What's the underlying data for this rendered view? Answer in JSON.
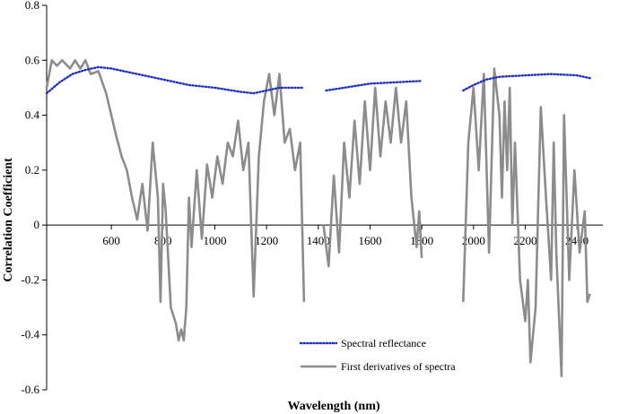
{
  "chart_data": {
    "type": "line",
    "title": "",
    "xlabel": "Wavelength (nm)",
    "ylabel": "Correlation Coefficient",
    "xlim": [
      350,
      2500
    ],
    "ylim": [
      -0.6,
      0.8
    ],
    "x_ticks": [
      600,
      800,
      1000,
      1200,
      1400,
      1600,
      1800,
      2000,
      2200,
      2400
    ],
    "y_ticks": [
      -0.6,
      -0.4,
      -0.2,
      0,
      0.2,
      0.4,
      0.6,
      0.8
    ],
    "y_tick_labels": [
      "-0.6",
      "-0.4",
      "-0.2",
      "0",
      "0.2",
      "0.4",
      "0.6",
      "0.8"
    ],
    "grid": false,
    "legend_position": "bottom-right",
    "series": [
      {
        "name": "Spectral reflectance",
        "color": "#1f2fbf",
        "style": "dotted",
        "segments": [
          [
            [
              350,
              0.48
            ],
            [
              400,
              0.52
            ],
            [
              450,
              0.55
            ],
            [
              500,
              0.565
            ],
            [
              550,
              0.575
            ],
            [
              600,
              0.57
            ],
            [
              700,
              0.55
            ],
            [
              800,
              0.53
            ],
            [
              900,
              0.51
            ],
            [
              1000,
              0.5
            ],
            [
              1100,
              0.485
            ],
            [
              1150,
              0.48
            ],
            [
              1200,
              0.49
            ],
            [
              1250,
              0.5
            ],
            [
              1300,
              0.5
            ],
            [
              1340,
              0.5
            ]
          ],
          [
            [
              1430,
              0.49
            ],
            [
              1500,
              0.5
            ],
            [
              1600,
              0.515
            ],
            [
              1700,
              0.52
            ],
            [
              1800,
              0.525
            ]
          ],
          [
            [
              1960,
              0.49
            ],
            [
              2000,
              0.51
            ],
            [
              2050,
              0.53
            ],
            [
              2100,
              0.54
            ],
            [
              2200,
              0.545
            ],
            [
              2300,
              0.55
            ],
            [
              2400,
              0.545
            ],
            [
              2450,
              0.535
            ]
          ]
        ]
      },
      {
        "name": "First derivatives of spectra",
        "color": "#8c8c8c",
        "style": "solid",
        "segments": [
          [
            [
              350,
              0.5
            ],
            [
              370,
              0.6
            ],
            [
              390,
              0.58
            ],
            [
              410,
              0.6
            ],
            [
              440,
              0.57
            ],
            [
              460,
              0.6
            ],
            [
              480,
              0.57
            ],
            [
              500,
              0.6
            ],
            [
              520,
              0.55
            ],
            [
              550,
              0.56
            ],
            [
              580,
              0.48
            ],
            [
              600,
              0.4
            ],
            [
              620,
              0.32
            ],
            [
              640,
              0.25
            ],
            [
              660,
              0.2
            ],
            [
              680,
              0.1
            ],
            [
              700,
              0.02
            ],
            [
              720,
              0.15
            ],
            [
              740,
              -0.02
            ],
            [
              760,
              0.3
            ],
            [
              770,
              0.2
            ],
            [
              780,
              0.1
            ],
            [
              790,
              -0.28
            ],
            [
              800,
              0.15
            ],
            [
              810,
              0.05
            ],
            [
              830,
              -0.3
            ],
            [
              850,
              -0.36
            ],
            [
              860,
              -0.42
            ],
            [
              870,
              -0.38
            ],
            [
              880,
              -0.42
            ],
            [
              890,
              -0.3
            ],
            [
              900,
              0.1
            ],
            [
              910,
              -0.08
            ],
            [
              930,
              0.2
            ],
            [
              950,
              -0.05
            ],
            [
              970,
              0.22
            ],
            [
              990,
              0.1
            ],
            [
              1010,
              0.25
            ],
            [
              1030,
              0.15
            ],
            [
              1050,
              0.3
            ],
            [
              1070,
              0.25
            ],
            [
              1090,
              0.38
            ],
            [
              1110,
              0.2
            ],
            [
              1130,
              0.3
            ],
            [
              1150,
              -0.26
            ],
            [
              1170,
              0.25
            ],
            [
              1190,
              0.45
            ],
            [
              1210,
              0.55
            ],
            [
              1230,
              0.4
            ],
            [
              1250,
              0.55
            ],
            [
              1270,
              0.3
            ],
            [
              1290,
              0.35
            ],
            [
              1310,
              0.2
            ],
            [
              1330,
              0.3
            ],
            [
              1345,
              -0.28
            ]
          ],
          [
            [
              1420,
              0.0
            ],
            [
              1440,
              -0.15
            ],
            [
              1460,
              0.18
            ],
            [
              1480,
              -0.1
            ],
            [
              1500,
              0.3
            ],
            [
              1520,
              0.1
            ],
            [
              1540,
              0.38
            ],
            [
              1560,
              0.15
            ],
            [
              1580,
              0.45
            ],
            [
              1600,
              0.2
            ],
            [
              1620,
              0.5
            ],
            [
              1640,
              0.25
            ],
            [
              1660,
              0.45
            ],
            [
              1680,
              0.3
            ],
            [
              1700,
              0.5
            ],
            [
              1720,
              0.3
            ],
            [
              1740,
              0.45
            ],
            [
              1760,
              0.1
            ],
            [
              1780,
              -0.08
            ],
            [
              1790,
              0.05
            ],
            [
              1800,
              -0.12
            ]
          ],
          [
            [
              1960,
              -0.28
            ],
            [
              1980,
              0.3
            ],
            [
              2000,
              0.5
            ],
            [
              2020,
              0.2
            ],
            [
              2040,
              0.55
            ],
            [
              2060,
              -0.1
            ],
            [
              2080,
              0.57
            ],
            [
              2100,
              0.4
            ],
            [
              2110,
              0.1
            ],
            [
              2120,
              0.45
            ],
            [
              2130,
              0.2
            ],
            [
              2140,
              0.5
            ],
            [
              2150,
              0.0
            ],
            [
              2160,
              0.3
            ],
            [
              2180,
              -0.2
            ],
            [
              2200,
              -0.35
            ],
            [
              2210,
              -0.2
            ],
            [
              2220,
              -0.5
            ],
            [
              2240,
              -0.3
            ],
            [
              2260,
              0.43
            ],
            [
              2280,
              0.1
            ],
            [
              2300,
              -0.2
            ],
            [
              2310,
              0.3
            ],
            [
              2320,
              -0.1
            ],
            [
              2340,
              -0.55
            ],
            [
              2350,
              0.4
            ],
            [
              2370,
              -0.2
            ],
            [
              2390,
              0.2
            ],
            [
              2410,
              -0.1
            ],
            [
              2430,
              0.05
            ],
            [
              2440,
              -0.28
            ],
            [
              2450,
              -0.25
            ]
          ]
        ]
      }
    ]
  }
}
